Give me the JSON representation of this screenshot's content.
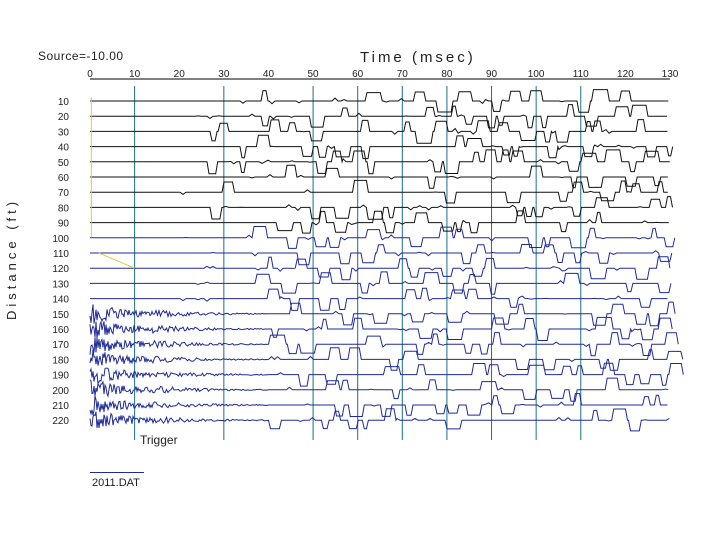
{
  "header": {
    "source": "Source=-10.00",
    "x_title": "Time (msec)",
    "y_title": "Distance (ft)"
  },
  "annotations": {
    "trigger": "Trigger",
    "file": "2011.DAT"
  },
  "colors": {
    "trace": "#1e2a9a",
    "axis": "#000000",
    "time_lines": "#1a6f8e",
    "first_arrival": "#e8c83a",
    "label": "#222222"
  },
  "chart_data": {
    "type": "line",
    "title": "",
    "xlabel": "Time (msec)",
    "ylabel": "Distance (ft)",
    "xlim": [
      0,
      130
    ],
    "ylim": [
      0,
      220
    ],
    "x_ticks": [
      0,
      10,
      20,
      30,
      40,
      50,
      60,
      70,
      80,
      90,
      100,
      110,
      120,
      130
    ],
    "y_ticks": [
      10,
      20,
      30,
      40,
      50,
      60,
      70,
      80,
      90,
      100,
      110,
      120,
      130,
      140,
      150,
      160,
      170,
      180,
      190,
      200,
      210,
      220
    ],
    "trigger_time_ms": 10,
    "time_lines_ms": [
      10,
      30,
      50,
      60,
      70,
      80,
      90,
      100,
      110
    ],
    "grid": false,
    "series_distances_ft": [
      10,
      20,
      30,
      40,
      50,
      60,
      70,
      80,
      90,
      100,
      110,
      120,
      130,
      140,
      150,
      160,
      170,
      180,
      190,
      200,
      210,
      220
    ]
  }
}
